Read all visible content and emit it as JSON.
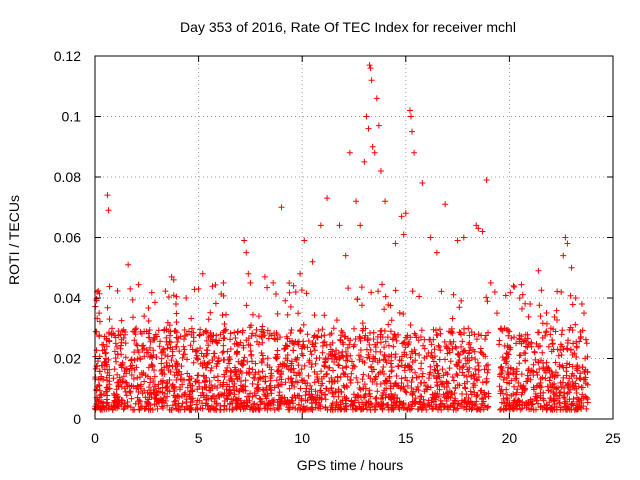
{
  "chart_data": {
    "type": "scatter",
    "title": "Day 353 of 2016, Rate Of TEC Index for receiver mchl",
    "xlabel": "GPS time / hours",
    "ylabel": "ROTI / TECUs",
    "xlim": [
      0,
      25
    ],
    "ylim": [
      0,
      0.12
    ],
    "xticks": [
      0,
      5,
      10,
      15,
      20,
      25
    ],
    "xtick_labels": [
      "0",
      "5",
      "10",
      "15",
      "20",
      "25"
    ],
    "yticks": [
      0,
      0.02,
      0.04,
      0.06,
      0.08,
      0.1,
      0.12
    ],
    "ytick_labels": [
      "0",
      "0.02",
      "0.04",
      "0.06",
      "0.08",
      "0.1",
      "0.12"
    ],
    "grid": true,
    "marker": "+",
    "color": "#ff0000",
    "series": [
      {
        "name": "ROTI",
        "x": [
          0.1,
          0.2,
          0.6,
          0.65,
          0.7,
          1.0,
          1.6,
          1.7,
          2.6,
          3.7,
          3.8,
          4.4,
          5.0,
          5.2,
          6.2,
          7.2,
          7.3,
          7.4,
          7.5,
          8.2,
          8.6,
          9.0,
          9.9,
          10.1,
          10.5,
          10.9,
          11.2,
          11.8,
          12.1,
          12.3,
          12.6,
          12.8,
          13.0,
          13.1,
          13.2,
          13.25,
          13.3,
          13.35,
          13.4,
          13.5,
          13.6,
          13.7,
          13.8,
          14.0,
          14.5,
          14.8,
          14.9,
          15.0,
          15.2,
          15.25,
          15.3,
          15.4,
          15.8,
          16.2,
          16.5,
          16.9,
          17.5,
          17.8,
          18.4,
          18.5,
          18.7,
          18.9,
          19.1,
          19.3,
          19.4,
          19.6,
          20.2,
          20.5,
          21.0,
          21.4,
          21.5,
          22.0,
          22.5,
          22.6,
          22.7,
          22.8,
          23.0,
          23.2,
          23.5,
          23.6
        ],
        "y": [
          0.042,
          0.035,
          0.074,
          0.069,
          0.033,
          0.025,
          0.051,
          0.043,
          0.027,
          0.047,
          0.046,
          0.04,
          0.043,
          0.048,
          0.045,
          0.059,
          0.055,
          0.048,
          0.045,
          0.047,
          0.045,
          0.07,
          0.048,
          0.059,
          0.052,
          0.064,
          0.073,
          0.064,
          0.054,
          0.088,
          0.072,
          0.064,
          0.085,
          0.1,
          0.096,
          0.117,
          0.116,
          0.112,
          0.09,
          0.088,
          0.106,
          0.097,
          0.082,
          0.072,
          0.058,
          0.067,
          0.061,
          0.068,
          0.102,
          0.1,
          0.095,
          0.088,
          0.078,
          0.06,
          0.055,
          0.071,
          0.059,
          0.06,
          0.064,
          0.063,
          0.062,
          0.079,
          0.045,
          0.042,
          0.035,
          0.03,
          0.044,
          0.04,
          0.038,
          0.049,
          0.034,
          0.03,
          0.042,
          0.054,
          0.06,
          0.058,
          0.05,
          0.04,
          0.038,
          0.035
        ]
      }
    ],
    "dense_band": {
      "x_start": 0.0,
      "x_end": 23.8,
      "gap": [
        19.0,
        19.5
      ],
      "y_floor": 0.003,
      "typical_upper": 0.03,
      "occasional_upper": 0.045
    }
  }
}
